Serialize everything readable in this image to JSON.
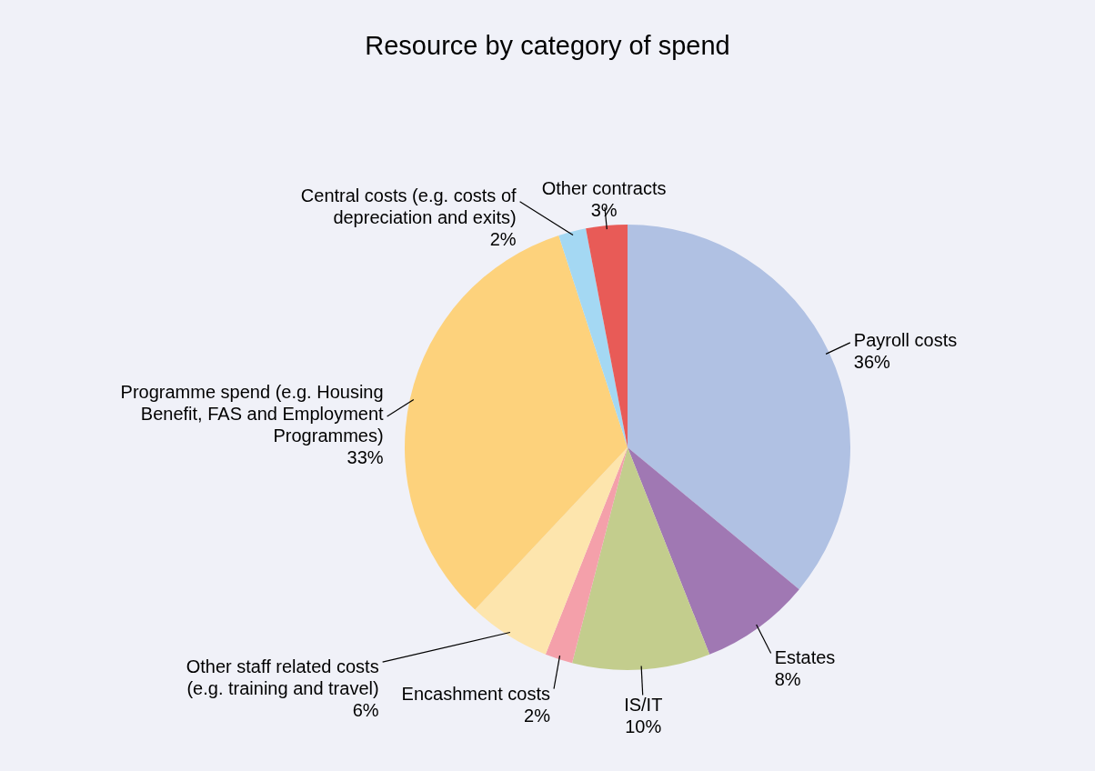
{
  "chart_data": {
    "type": "pie",
    "title": "Resource by category of spend",
    "categories": [
      "Payroll costs",
      "Estates",
      "IS/IT",
      "Encashment costs",
      "Other staff related costs (e.g. training and travel)",
      "Programme spend (e.g. Housing Benefit, FAS and Employment Programmes)",
      "Central costs (e.g. costs of depreciation and exits)",
      "Other contracts"
    ],
    "values": [
      36,
      8,
      10,
      2,
      6,
      33,
      2,
      3
    ],
    "value_labels": [
      "36%",
      "8%",
      "10%",
      "2%",
      "6%",
      "33%",
      "2%",
      "3%"
    ],
    "colors": [
      "#b0c1e3",
      "#a078b3",
      "#c3cd8d",
      "#f4a0aa",
      "#fde5ad",
      "#fdd27c",
      "#a4d8f3",
      "#e85b57"
    ],
    "legend": false
  }
}
